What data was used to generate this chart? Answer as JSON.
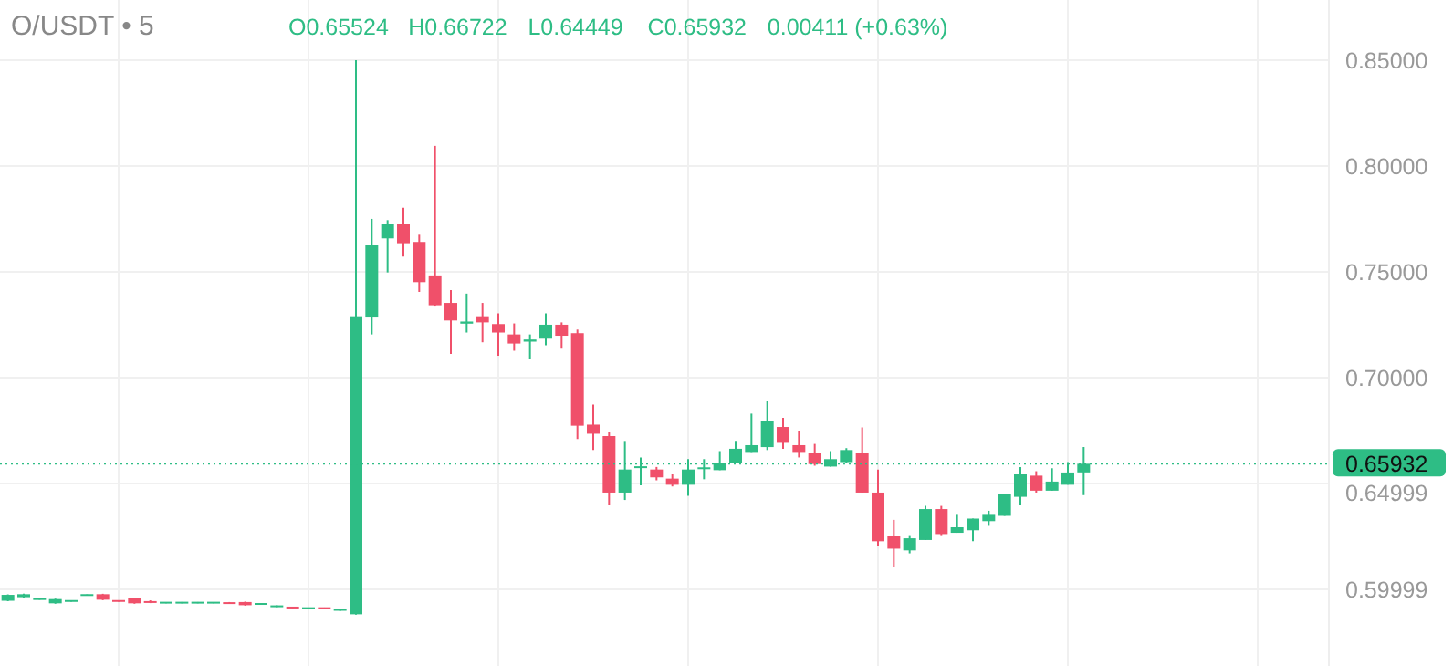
{
  "chart_data": {
    "type": "candlestick",
    "title": "O/USDT • 5",
    "annotations": [
      "O0.65524",
      "H0.66722",
      "L0.64449",
      "C0.65932",
      "0.00411 (+0.63%)"
    ],
    "categories": [
      null,
      null,
      null,
      null,
      null,
      null,
      null,
      null,
      null,
      null,
      null,
      null,
      null,
      null,
      null,
      null,
      null,
      null,
      null,
      null,
      null,
      null,
      null,
      null,
      null,
      null,
      null,
      null,
      null,
      null,
      null,
      null,
      null,
      null,
      null,
      null,
      null,
      null,
      null,
      null,
      null,
      null,
      null,
      null,
      null,
      null,
      null,
      null,
      null,
      null,
      null,
      null,
      null,
      null,
      null,
      null,
      null,
      null,
      null,
      null,
      null,
      null,
      null,
      null,
      null,
      null,
      null,
      null,
      null,
      null,
      null,
      null,
      null,
      null,
      null,
      null,
      null,
      null,
      null,
      null,
      null,
      null,
      null,
      null
    ],
    "ohlc": [
      [
        0.5946,
        0.5976,
        0.5944,
        0.5974
      ],
      [
        0.5963,
        0.5979,
        0.5961,
        0.5977
      ],
      [
        0.5953,
        0.5957,
        0.5951,
        0.5955
      ],
      [
        0.5934,
        0.5956,
        0.5932,
        0.5954
      ],
      [
        0.5944,
        0.5948,
        0.5942,
        0.5946
      ],
      [
        0.5972,
        0.5976,
        0.597,
        0.5974
      ],
      [
        0.5977,
        0.5979,
        0.5949,
        0.5951
      ],
      [
        0.5946,
        0.5948,
        0.5942,
        0.5944
      ],
      [
        0.5957,
        0.5959,
        0.5932,
        0.5934
      ],
      [
        0.5941,
        0.5948,
        0.5935,
        0.5939
      ],
      [
        0.5936,
        0.594,
        0.5934,
        0.5938
      ],
      [
        0.5936,
        0.594,
        0.5934,
        0.5938
      ],
      [
        0.5936,
        0.594,
        0.5934,
        0.5938
      ],
      [
        0.5936,
        0.594,
        0.5934,
        0.5938
      ],
      [
        0.5936,
        0.594,
        0.5932,
        0.5934
      ],
      [
        0.594,
        0.5942,
        0.5923,
        0.5925
      ],
      [
        0.593,
        0.5934,
        0.5928,
        0.5932
      ],
      [
        0.5919,
        0.5925,
        0.5915,
        0.5921
      ],
      [
        0.5915,
        0.5917,
        0.5911,
        0.5913
      ],
      [
        0.591,
        0.5914,
        0.5908,
        0.5912
      ],
      [
        0.5912,
        0.5914,
        0.5908,
        0.591
      ],
      [
        0.5902,
        0.5908,
        0.5898,
        0.5904
      ],
      [
        0.5882,
        0.85,
        0.588,
        0.729
      ],
      [
        0.7284,
        0.775,
        0.7204,
        0.7629
      ],
      [
        0.7658,
        0.7744,
        0.7497,
        0.7727
      ],
      [
        0.7727,
        0.7802,
        0.7572,
        0.7635
      ],
      [
        0.7641,
        0.7675,
        0.7405,
        0.7451
      ],
      [
        0.7483,
        0.8095,
        0.734,
        0.7342
      ],
      [
        0.7353,
        0.7414,
        0.7112,
        0.727
      ],
      [
        0.7255,
        0.7397,
        0.7213,
        0.7265
      ],
      [
        0.729,
        0.7353,
        0.7167,
        0.7261
      ],
      [
        0.7253,
        0.7304,
        0.7103,
        0.7213
      ],
      [
        0.7204,
        0.7256,
        0.7127,
        0.7161
      ],
      [
        0.717,
        0.7204,
        0.7089,
        0.718
      ],
      [
        0.7184,
        0.7304,
        0.7153,
        0.725
      ],
      [
        0.725,
        0.7261,
        0.7141,
        0.7198
      ],
      [
        0.721,
        0.7227,
        0.671,
        0.6773
      ],
      [
        0.6778,
        0.6873,
        0.6658,
        0.6735
      ],
      [
        0.6724,
        0.6744,
        0.64,
        0.6457
      ],
      [
        0.6457,
        0.6701,
        0.6422,
        0.6566
      ],
      [
        0.6574,
        0.6623,
        0.6491,
        0.658
      ],
      [
        0.6566,
        0.6578,
        0.6515,
        0.6529
      ],
      [
        0.6523,
        0.6543,
        0.6486,
        0.6494
      ],
      [
        0.6494,
        0.6615,
        0.6442,
        0.6566
      ],
      [
        0.6568,
        0.6615,
        0.652,
        0.6576
      ],
      [
        0.6563,
        0.6653,
        0.6563,
        0.6595
      ],
      [
        0.6595,
        0.6701,
        0.6595,
        0.6664
      ],
      [
        0.6649,
        0.683,
        0.6649,
        0.6681
      ],
      [
        0.6672,
        0.6888,
        0.6658,
        0.6793
      ],
      [
        0.6767,
        0.681,
        0.6664,
        0.6692
      ],
      [
        0.6681,
        0.675,
        0.6623,
        0.6649
      ],
      [
        0.6644,
        0.6687,
        0.6584,
        0.6592
      ],
      [
        0.658,
        0.6653,
        0.658,
        0.6615
      ],
      [
        0.6601,
        0.6667,
        0.6595,
        0.6658
      ],
      [
        0.6644,
        0.6765,
        0.6457,
        0.6457
      ],
      [
        0.6457,
        0.6566,
        0.6204,
        0.6227
      ],
      [
        0.625,
        0.6328,
        0.6106,
        0.6192
      ],
      [
        0.6184,
        0.6256,
        0.617,
        0.6241
      ],
      [
        0.6233,
        0.6394,
        0.6233,
        0.6379
      ],
      [
        0.6379,
        0.6394,
        0.6256,
        0.6261
      ],
      [
        0.6267,
        0.6356,
        0.6267,
        0.6293
      ],
      [
        0.6279,
        0.6334,
        0.6227,
        0.6334
      ],
      [
        0.6322,
        0.6371,
        0.6304,
        0.6356
      ],
      [
        0.6347,
        0.6451,
        0.6347,
        0.6451
      ],
      [
        0.6437,
        0.6578,
        0.64,
        0.6543
      ],
      [
        0.6537,
        0.6558,
        0.6457,
        0.6466
      ],
      [
        0.6466,
        0.6572,
        0.6466,
        0.6509
      ],
      [
        0.6494,
        0.6601,
        0.6494,
        0.6552
      ],
      [
        0.65524,
        0.66722,
        0.64449,
        0.65932
      ],
      null,
      null,
      null,
      null,
      null,
      null,
      null,
      null,
      null,
      null,
      null,
      null,
      null,
      null,
      null
    ],
    "colors": [
      "#2ebd85",
      "#2ebd85",
      "#2ebd85",
      "#2ebd85",
      "#2ebd85",
      "#2ebd85",
      "#f0506a",
      "#f0506a",
      "#f0506a",
      "#f0506a",
      "#2ebd85",
      "#2ebd85",
      "#2ebd85",
      "#2ebd85",
      "#f0506a",
      "#f0506a",
      "#2ebd85",
      "#2ebd85",
      "#f0506a",
      "#2ebd85",
      "#f0506a",
      "#2ebd85",
      "#2ebd85",
      "#2ebd85",
      "#2ebd85",
      "#f0506a",
      "#f0506a",
      "#f0506a",
      "#f0506a",
      "#2ebd85",
      "#f0506a",
      "#f0506a",
      "#f0506a",
      "#2ebd85",
      "#2ebd85",
      "#f0506a",
      "#f0506a",
      "#f0506a",
      "#f0506a",
      "#2ebd85",
      "#2ebd85",
      "#f0506a",
      "#f0506a",
      "#2ebd85",
      "#2ebd85",
      "#2ebd85",
      "#2ebd85",
      "#2ebd85",
      "#2ebd85",
      "#f0506a",
      "#f0506a",
      "#f0506a",
      "#2ebd85",
      "#2ebd85",
      "#f0506a",
      "#f0506a",
      "#f0506a",
      "#2ebd85",
      "#2ebd85",
      "#f0506a",
      "#2ebd85",
      "#2ebd85",
      "#2ebd85",
      "#2ebd85",
      "#2ebd85",
      "#f0506a",
      "#2ebd85",
      "#2ebd85",
      "#2ebd85",
      null,
      null,
      null,
      null,
      null,
      null,
      null,
      null,
      null,
      null,
      null,
      null,
      null,
      null,
      null
    ],
    "ylim": [
      0.5638,
      0.8784
    ],
    "yticks": [
      {
        "value": 0.85,
        "label": "0.85000"
      },
      {
        "value": 0.8,
        "label": "0.80000"
      },
      {
        "value": 0.75,
        "label": "0.75000"
      },
      {
        "value": 0.7,
        "label": "0.70000"
      },
      {
        "value": 0.64999,
        "label": "0.64999"
      },
      {
        "value": 0.59999,
        "label": "0.59999"
      }
    ],
    "grid": true,
    "ref_lines": [
      {
        "axis": "y",
        "value": 0.65932,
        "label": "0.65932",
        "color": "#2ebd85",
        "line_style": "dotted"
      }
    ]
  }
}
